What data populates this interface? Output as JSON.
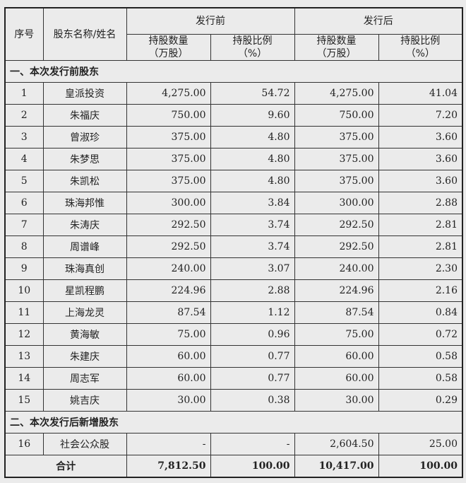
{
  "header": {
    "seq": "序号",
    "name": "股东名称/姓名",
    "before": "发行前",
    "after": "发行后",
    "shares": "持股数量",
    "shares_unit": "（万股）",
    "ratio": "持股比例",
    "ratio_unit": "（%）"
  },
  "section1": "一、本次发行前股东",
  "rows1": [
    [
      "1",
      "皇派投资",
      "4,275.00",
      "54.72",
      "4,275.00",
      "41.04"
    ],
    [
      "2",
      "朱福庆",
      "750.00",
      "9.60",
      "750.00",
      "7.20"
    ],
    [
      "3",
      "曾淑珍",
      "375.00",
      "4.80",
      "375.00",
      "3.60"
    ],
    [
      "4",
      "朱梦思",
      "375.00",
      "4.80",
      "375.00",
      "3.60"
    ],
    [
      "5",
      "朱凯松",
      "375.00",
      "4.80",
      "375.00",
      "3.60"
    ],
    [
      "6",
      "珠海邦惟",
      "300.00",
      "3.84",
      "300.00",
      "2.88"
    ],
    [
      "7",
      "朱涛庆",
      "292.50",
      "3.74",
      "292.50",
      "2.81"
    ],
    [
      "8",
      "周谱峰",
      "292.50",
      "3.74",
      "292.50",
      "2.81"
    ],
    [
      "9",
      "珠海真创",
      "240.00",
      "3.07",
      "240.00",
      "2.30"
    ],
    [
      "10",
      "星凯程鹏",
      "224.96",
      "2.88",
      "224.96",
      "2.16"
    ],
    [
      "11",
      "上海龙灵",
      "87.54",
      "1.12",
      "87.54",
      "0.84"
    ],
    [
      "12",
      "黄海敏",
      "75.00",
      "0.96",
      "75.00",
      "0.72"
    ],
    [
      "13",
      "朱建庆",
      "60.00",
      "0.77",
      "60.00",
      "0.58"
    ],
    [
      "14",
      "周志军",
      "60.00",
      "0.77",
      "60.00",
      "0.58"
    ],
    [
      "15",
      "姚吉庆",
      "30.00",
      "0.38",
      "30.00",
      "0.29"
    ]
  ],
  "section2": "二、本次发行后新增股东",
  "rows2": [
    [
      "16",
      "社会公众股",
      "-",
      "-",
      "2,604.50",
      "25.00"
    ]
  ],
  "total": {
    "label": "合计",
    "before_shares": "7,812.50",
    "before_ratio": "100.00",
    "after_shares": "10,417.00",
    "after_ratio": "100.00"
  }
}
